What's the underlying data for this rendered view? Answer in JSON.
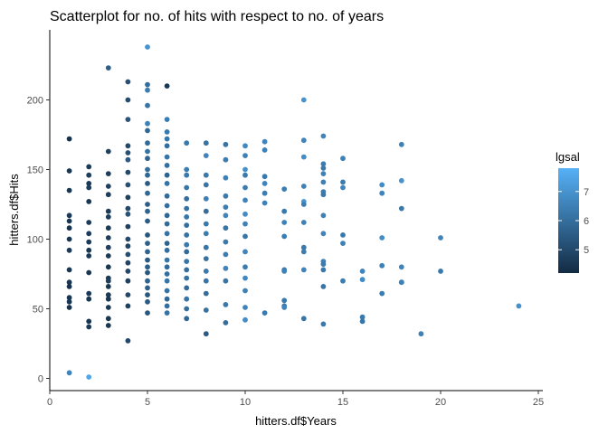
{
  "chart_data": {
    "type": "scatter",
    "title": "Scatterplot for no. of hits with respect to no. of years",
    "xlabel": "hitters.df$Years",
    "ylabel": "hitters.df$Hits",
    "xlim": [
      0,
      25
    ],
    "ylim": [
      0,
      238
    ],
    "x_ticks": [
      0,
      5,
      10,
      15,
      20,
      25
    ],
    "x_tick_labels": [
      "0",
      "5",
      "10",
      "15",
      "20",
      "25"
    ],
    "y_ticks": [
      0,
      50,
      100,
      150,
      200
    ],
    "y_tick_labels": [
      "0",
      "50",
      "100",
      "150",
      "200"
    ],
    "grid": false,
    "legend": {
      "title": "lgsal",
      "position": "right",
      "range": [
        4.2,
        7.8
      ],
      "ticks": [
        5,
        6,
        7
      ],
      "tick_labels": [
        "5",
        "6",
        "7"
      ],
      "low_color": "#132b43",
      "high_color": "#56b1f7"
    },
    "colors": {
      "low": "#132b43",
      "high": "#56b1f7"
    },
    "points": [
      {
        "x": 1,
        "y": 172,
        "c": 4.4
      },
      {
        "x": 1,
        "y": 149,
        "c": 4.5
      },
      {
        "x": 1,
        "y": 135,
        "c": 4.5
      },
      {
        "x": 1,
        "y": 117,
        "c": 4.6
      },
      {
        "x": 1,
        "y": 113,
        "c": 4.5
      },
      {
        "x": 1,
        "y": 108,
        "c": 4.4
      },
      {
        "x": 1,
        "y": 100,
        "c": 4.5
      },
      {
        "x": 1,
        "y": 92,
        "c": 4.6
      },
      {
        "x": 1,
        "y": 78,
        "c": 4.5
      },
      {
        "x": 1,
        "y": 69,
        "c": 4.5
      },
      {
        "x": 1,
        "y": 66,
        "c": 4.4
      },
      {
        "x": 1,
        "y": 58,
        "c": 4.5
      },
      {
        "x": 1,
        "y": 55,
        "c": 4.5
      },
      {
        "x": 1,
        "y": 51,
        "c": 4.4
      },
      {
        "x": 1,
        "y": 4,
        "c": 6.6
      },
      {
        "x": 2,
        "y": 152,
        "c": 4.6
      },
      {
        "x": 2,
        "y": 146,
        "c": 4.7
      },
      {
        "x": 2,
        "y": 140,
        "c": 4.6
      },
      {
        "x": 2,
        "y": 137,
        "c": 4.7
      },
      {
        "x": 2,
        "y": 127,
        "c": 4.5
      },
      {
        "x": 2,
        "y": 112,
        "c": 4.6
      },
      {
        "x": 2,
        "y": 104,
        "c": 4.7
      },
      {
        "x": 2,
        "y": 98,
        "c": 4.6
      },
      {
        "x": 2,
        "y": 92,
        "c": 4.5
      },
      {
        "x": 2,
        "y": 88,
        "c": 4.6
      },
      {
        "x": 2,
        "y": 76,
        "c": 4.5
      },
      {
        "x": 2,
        "y": 61,
        "c": 4.6
      },
      {
        "x": 2,
        "y": 57,
        "c": 4.5
      },
      {
        "x": 2,
        "y": 41,
        "c": 4.5
      },
      {
        "x": 2,
        "y": 37,
        "c": 4.6
      },
      {
        "x": 2,
        "y": 1,
        "c": 7.5
      },
      {
        "x": 3,
        "y": 223,
        "c": 5.6
      },
      {
        "x": 3,
        "y": 163,
        "c": 4.8
      },
      {
        "x": 3,
        "y": 147,
        "c": 4.7
      },
      {
        "x": 3,
        "y": 138,
        "c": 4.8
      },
      {
        "x": 3,
        "y": 132,
        "c": 4.7
      },
      {
        "x": 3,
        "y": 120,
        "c": 4.6
      },
      {
        "x": 3,
        "y": 116,
        "c": 4.7
      },
      {
        "x": 3,
        "y": 108,
        "c": 4.6
      },
      {
        "x": 3,
        "y": 101,
        "c": 4.7
      },
      {
        "x": 3,
        "y": 94,
        "c": 4.8
      },
      {
        "x": 3,
        "y": 88,
        "c": 4.6
      },
      {
        "x": 3,
        "y": 80,
        "c": 4.5
      },
      {
        "x": 3,
        "y": 72,
        "c": 4.6
      },
      {
        "x": 3,
        "y": 70,
        "c": 4.7
      },
      {
        "x": 3,
        "y": 66,
        "c": 4.5
      },
      {
        "x": 3,
        "y": 60,
        "c": 4.6
      },
      {
        "x": 3,
        "y": 57,
        "c": 4.5
      },
      {
        "x": 3,
        "y": 51,
        "c": 4.6
      },
      {
        "x": 3,
        "y": 43,
        "c": 4.5
      },
      {
        "x": 3,
        "y": 38,
        "c": 4.5
      },
      {
        "x": 4,
        "y": 213,
        "c": 5.2
      },
      {
        "x": 4,
        "y": 200,
        "c": 5.1
      },
      {
        "x": 4,
        "y": 186,
        "c": 5.3
      },
      {
        "x": 4,
        "y": 167,
        "c": 5.0
      },
      {
        "x": 4,
        "y": 162,
        "c": 5.2
      },
      {
        "x": 4,
        "y": 157,
        "c": 5.5
      },
      {
        "x": 4,
        "y": 148,
        "c": 5.0
      },
      {
        "x": 4,
        "y": 139,
        "c": 5.2
      },
      {
        "x": 4,
        "y": 130,
        "c": 4.8
      },
      {
        "x": 4,
        "y": 122,
        "c": 5.0
      },
      {
        "x": 4,
        "y": 118,
        "c": 5.3
      },
      {
        "x": 4,
        "y": 109,
        "c": 4.8
      },
      {
        "x": 4,
        "y": 100,
        "c": 5.0
      },
      {
        "x": 4,
        "y": 95,
        "c": 4.9
      },
      {
        "x": 4,
        "y": 89,
        "c": 5.2
      },
      {
        "x": 4,
        "y": 83,
        "c": 4.9
      },
      {
        "x": 4,
        "y": 77,
        "c": 5.0
      },
      {
        "x": 4,
        "y": 70,
        "c": 4.8
      },
      {
        "x": 4,
        "y": 60,
        "c": 5.0
      },
      {
        "x": 4,
        "y": 52,
        "c": 4.8
      },
      {
        "x": 4,
        "y": 27,
        "c": 5.0
      },
      {
        "x": 5,
        "y": 238,
        "c": 7.0
      },
      {
        "x": 5,
        "y": 211,
        "c": 6.0
      },
      {
        "x": 5,
        "y": 207,
        "c": 6.4
      },
      {
        "x": 5,
        "y": 196,
        "c": 6.2
      },
      {
        "x": 5,
        "y": 183,
        "c": 6.5
      },
      {
        "x": 5,
        "y": 178,
        "c": 5.8
      },
      {
        "x": 5,
        "y": 169,
        "c": 5.9
      },
      {
        "x": 5,
        "y": 163,
        "c": 6.1
      },
      {
        "x": 5,
        "y": 158,
        "c": 5.7
      },
      {
        "x": 5,
        "y": 150,
        "c": 6.0
      },
      {
        "x": 5,
        "y": 146,
        "c": 5.8
      },
      {
        "x": 5,
        "y": 140,
        "c": 5.5
      },
      {
        "x": 5,
        "y": 133,
        "c": 5.8
      },
      {
        "x": 5,
        "y": 125,
        "c": 5.6
      },
      {
        "x": 5,
        "y": 120,
        "c": 5.7
      },
      {
        "x": 5,
        "y": 113,
        "c": 5.5
      },
      {
        "x": 5,
        "y": 103,
        "c": 5.4
      },
      {
        "x": 5,
        "y": 97,
        "c": 5.6
      },
      {
        "x": 5,
        "y": 91,
        "c": 5.7
      },
      {
        "x": 5,
        "y": 85,
        "c": 5.5
      },
      {
        "x": 5,
        "y": 80,
        "c": 5.6
      },
      {
        "x": 5,
        "y": 76,
        "c": 5.4
      },
      {
        "x": 5,
        "y": 70,
        "c": 5.7
      },
      {
        "x": 5,
        "y": 65,
        "c": 5.6
      },
      {
        "x": 5,
        "y": 60,
        "c": 5.4
      },
      {
        "x": 5,
        "y": 55,
        "c": 5.5
      },
      {
        "x": 5,
        "y": 47,
        "c": 5.4
      },
      {
        "x": 6,
        "y": 210,
        "c": 4.5
      },
      {
        "x": 6,
        "y": 186,
        "c": 6.4
      },
      {
        "x": 6,
        "y": 177,
        "c": 6.3
      },
      {
        "x": 6,
        "y": 172,
        "c": 6.2
      },
      {
        "x": 6,
        "y": 167,
        "c": 6.0
      },
      {
        "x": 6,
        "y": 159,
        "c": 6.2
      },
      {
        "x": 6,
        "y": 153,
        "c": 6.0
      },
      {
        "x": 6,
        "y": 146,
        "c": 5.7
      },
      {
        "x": 6,
        "y": 140,
        "c": 6.1
      },
      {
        "x": 6,
        "y": 131,
        "c": 5.9
      },
      {
        "x": 6,
        "y": 124,
        "c": 6.0
      },
      {
        "x": 6,
        "y": 117,
        "c": 5.8
      },
      {
        "x": 6,
        "y": 111,
        "c": 5.9
      },
      {
        "x": 6,
        "y": 104,
        "c": 6.1
      },
      {
        "x": 6,
        "y": 97,
        "c": 5.7
      },
      {
        "x": 6,
        "y": 92,
        "c": 6.0
      },
      {
        "x": 6,
        "y": 85,
        "c": 6.2
      },
      {
        "x": 6,
        "y": 80,
        "c": 5.9
      },
      {
        "x": 6,
        "y": 75,
        "c": 6.0
      },
      {
        "x": 6,
        "y": 70,
        "c": 6.2
      },
      {
        "x": 6,
        "y": 63,
        "c": 6.1
      },
      {
        "x": 6,
        "y": 57,
        "c": 5.8
      },
      {
        "x": 6,
        "y": 52,
        "c": 6.0
      },
      {
        "x": 6,
        "y": 47,
        "c": 6.1
      },
      {
        "x": 7,
        "y": 169,
        "c": 6.3
      },
      {
        "x": 7,
        "y": 150,
        "c": 6.4
      },
      {
        "x": 7,
        "y": 146,
        "c": 6.3
      },
      {
        "x": 7,
        "y": 137,
        "c": 6.2
      },
      {
        "x": 7,
        "y": 129,
        "c": 6.0
      },
      {
        "x": 7,
        "y": 122,
        "c": 6.1
      },
      {
        "x": 7,
        "y": 116,
        "c": 6.2
      },
      {
        "x": 7,
        "y": 110,
        "c": 6.0
      },
      {
        "x": 7,
        "y": 103,
        "c": 6.1
      },
      {
        "x": 7,
        "y": 96,
        "c": 6.3
      },
      {
        "x": 7,
        "y": 91,
        "c": 5.9
      },
      {
        "x": 7,
        "y": 84,
        "c": 6.2
      },
      {
        "x": 7,
        "y": 78,
        "c": 6.0
      },
      {
        "x": 7,
        "y": 72,
        "c": 6.1
      },
      {
        "x": 7,
        "y": 65,
        "c": 5.9
      },
      {
        "x": 7,
        "y": 57,
        "c": 6.2
      },
      {
        "x": 7,
        "y": 50,
        "c": 6.0
      },
      {
        "x": 7,
        "y": 43,
        "c": 5.8
      },
      {
        "x": 8,
        "y": 169,
        "c": 6.1
      },
      {
        "x": 8,
        "y": 160,
        "c": 6.6
      },
      {
        "x": 8,
        "y": 146,
        "c": 6.3
      },
      {
        "x": 8,
        "y": 139,
        "c": 6.2
      },
      {
        "x": 8,
        "y": 129,
        "c": 6.5
      },
      {
        "x": 8,
        "y": 120,
        "c": 6.0
      },
      {
        "x": 8,
        "y": 111,
        "c": 6.3
      },
      {
        "x": 8,
        "y": 104,
        "c": 6.4
      },
      {
        "x": 8,
        "y": 94,
        "c": 6.2
      },
      {
        "x": 8,
        "y": 86,
        "c": 6.1
      },
      {
        "x": 8,
        "y": 77,
        "c": 6.3
      },
      {
        "x": 8,
        "y": 70,
        "c": 6.2
      },
      {
        "x": 8,
        "y": 61,
        "c": 6.0
      },
      {
        "x": 8,
        "y": 49,
        "c": 6.1
      },
      {
        "x": 8,
        "y": 32,
        "c": 5.5
      },
      {
        "x": 9,
        "y": 168,
        "c": 6.2
      },
      {
        "x": 9,
        "y": 157,
        "c": 6.4
      },
      {
        "x": 9,
        "y": 144,
        "c": 6.5
      },
      {
        "x": 9,
        "y": 131,
        "c": 6.3
      },
      {
        "x": 9,
        "y": 123,
        "c": 6.4
      },
      {
        "x": 9,
        "y": 117,
        "c": 6.6
      },
      {
        "x": 9,
        "y": 108,
        "c": 6.2
      },
      {
        "x": 9,
        "y": 98,
        "c": 6.3
      },
      {
        "x": 9,
        "y": 89,
        "c": 6.4
      },
      {
        "x": 9,
        "y": 79,
        "c": 6.6
      },
      {
        "x": 9,
        "y": 70,
        "c": 6.2
      },
      {
        "x": 9,
        "y": 53,
        "c": 6.3
      },
      {
        "x": 9,
        "y": 40,
        "c": 6.0
      },
      {
        "x": 10,
        "y": 167,
        "c": 6.7
      },
      {
        "x": 10,
        "y": 160,
        "c": 6.5
      },
      {
        "x": 10,
        "y": 150,
        "c": 6.9
      },
      {
        "x": 10,
        "y": 146,
        "c": 6.3
      },
      {
        "x": 10,
        "y": 137,
        "c": 6.4
      },
      {
        "x": 10,
        "y": 128,
        "c": 6.6
      },
      {
        "x": 10,
        "y": 118,
        "c": 6.8
      },
      {
        "x": 10,
        "y": 111,
        "c": 6.5
      },
      {
        "x": 10,
        "y": 102,
        "c": 6.2
      },
      {
        "x": 10,
        "y": 91,
        "c": 6.6
      },
      {
        "x": 10,
        "y": 80,
        "c": 6.4
      },
      {
        "x": 10,
        "y": 72,
        "c": 6.7
      },
      {
        "x": 10,
        "y": 63,
        "c": 6.5
      },
      {
        "x": 10,
        "y": 51,
        "c": 6.6
      },
      {
        "x": 10,
        "y": 42,
        "c": 6.8
      },
      {
        "x": 11,
        "y": 170,
        "c": 6.6
      },
      {
        "x": 11,
        "y": 164,
        "c": 6.5
      },
      {
        "x": 11,
        "y": 145,
        "c": 6.3
      },
      {
        "x": 11,
        "y": 140,
        "c": 6.6
      },
      {
        "x": 11,
        "y": 133,
        "c": 6.4
      },
      {
        "x": 11,
        "y": 126,
        "c": 6.5
      },
      {
        "x": 11,
        "y": 47,
        "c": 6.3
      },
      {
        "x": 12,
        "y": 136,
        "c": 6.4
      },
      {
        "x": 12,
        "y": 120,
        "c": 6.3
      },
      {
        "x": 12,
        "y": 112,
        "c": 6.5
      },
      {
        "x": 12,
        "y": 102,
        "c": 6.4
      },
      {
        "x": 12,
        "y": 78,
        "c": 6.3
      },
      {
        "x": 12,
        "y": 77,
        "c": 6.5
      },
      {
        "x": 12,
        "y": 56,
        "c": 6.3
      },
      {
        "x": 12,
        "y": 52,
        "c": 6.2
      },
      {
        "x": 12,
        "y": 51,
        "c": 6.6
      },
      {
        "x": 13,
        "y": 200,
        "c": 7.0
      },
      {
        "x": 13,
        "y": 171,
        "c": 6.6
      },
      {
        "x": 13,
        "y": 159,
        "c": 6.8
      },
      {
        "x": 13,
        "y": 138,
        "c": 6.5
      },
      {
        "x": 13,
        "y": 127,
        "c": 7.1
      },
      {
        "x": 13,
        "y": 125,
        "c": 6.4
      },
      {
        "x": 13,
        "y": 112,
        "c": 6.5
      },
      {
        "x": 13,
        "y": 94,
        "c": 6.3
      },
      {
        "x": 13,
        "y": 91,
        "c": 6.4
      },
      {
        "x": 13,
        "y": 78,
        "c": 6.6
      },
      {
        "x": 13,
        "y": 43,
        "c": 6.2
      },
      {
        "x": 14,
        "y": 174,
        "c": 6.6
      },
      {
        "x": 14,
        "y": 154,
        "c": 6.4
      },
      {
        "x": 14,
        "y": 151,
        "c": 6.3
      },
      {
        "x": 14,
        "y": 147,
        "c": 6.5
      },
      {
        "x": 14,
        "y": 141,
        "c": 6.5
      },
      {
        "x": 14,
        "y": 134,
        "c": 6.4
      },
      {
        "x": 14,
        "y": 132,
        "c": 6.3
      },
      {
        "x": 14,
        "y": 117,
        "c": 6.5
      },
      {
        "x": 14,
        "y": 104,
        "c": 6.6
      },
      {
        "x": 14,
        "y": 84,
        "c": 6.5
      },
      {
        "x": 14,
        "y": 82,
        "c": 6.4
      },
      {
        "x": 14,
        "y": 78,
        "c": 6.3
      },
      {
        "x": 14,
        "y": 66,
        "c": 6.2
      },
      {
        "x": 14,
        "y": 39,
        "c": 6.3
      },
      {
        "x": 15,
        "y": 158,
        "c": 6.5
      },
      {
        "x": 15,
        "y": 141,
        "c": 6.4
      },
      {
        "x": 15,
        "y": 137,
        "c": 6.6
      },
      {
        "x": 15,
        "y": 103,
        "c": 6.3
      },
      {
        "x": 15,
        "y": 97,
        "c": 6.5
      },
      {
        "x": 15,
        "y": 70,
        "c": 6.4
      },
      {
        "x": 16,
        "y": 77,
        "c": 6.6
      },
      {
        "x": 16,
        "y": 71,
        "c": 6.8
      },
      {
        "x": 16,
        "y": 44,
        "c": 6.3
      },
      {
        "x": 16,
        "y": 41,
        "c": 6.2
      },
      {
        "x": 17,
        "y": 139,
        "c": 6.8
      },
      {
        "x": 17,
        "y": 133,
        "c": 6.6
      },
      {
        "x": 17,
        "y": 101,
        "c": 6.8
      },
      {
        "x": 17,
        "y": 81,
        "c": 6.5
      },
      {
        "x": 17,
        "y": 61,
        "c": 6.4
      },
      {
        "x": 18,
        "y": 168,
        "c": 6.5
      },
      {
        "x": 18,
        "y": 142,
        "c": 7.0
      },
      {
        "x": 18,
        "y": 122,
        "c": 6.3
      },
      {
        "x": 18,
        "y": 80,
        "c": 6.6
      },
      {
        "x": 18,
        "y": 69,
        "c": 6.8
      },
      {
        "x": 18,
        "y": 69,
        "c": 6.5
      },
      {
        "x": 19,
        "y": 32,
        "c": 6.5
      },
      {
        "x": 20,
        "y": 101,
        "c": 6.6
      },
      {
        "x": 20,
        "y": 77,
        "c": 6.3
      },
      {
        "x": 24,
        "y": 52,
        "c": 6.9
      }
    ]
  }
}
